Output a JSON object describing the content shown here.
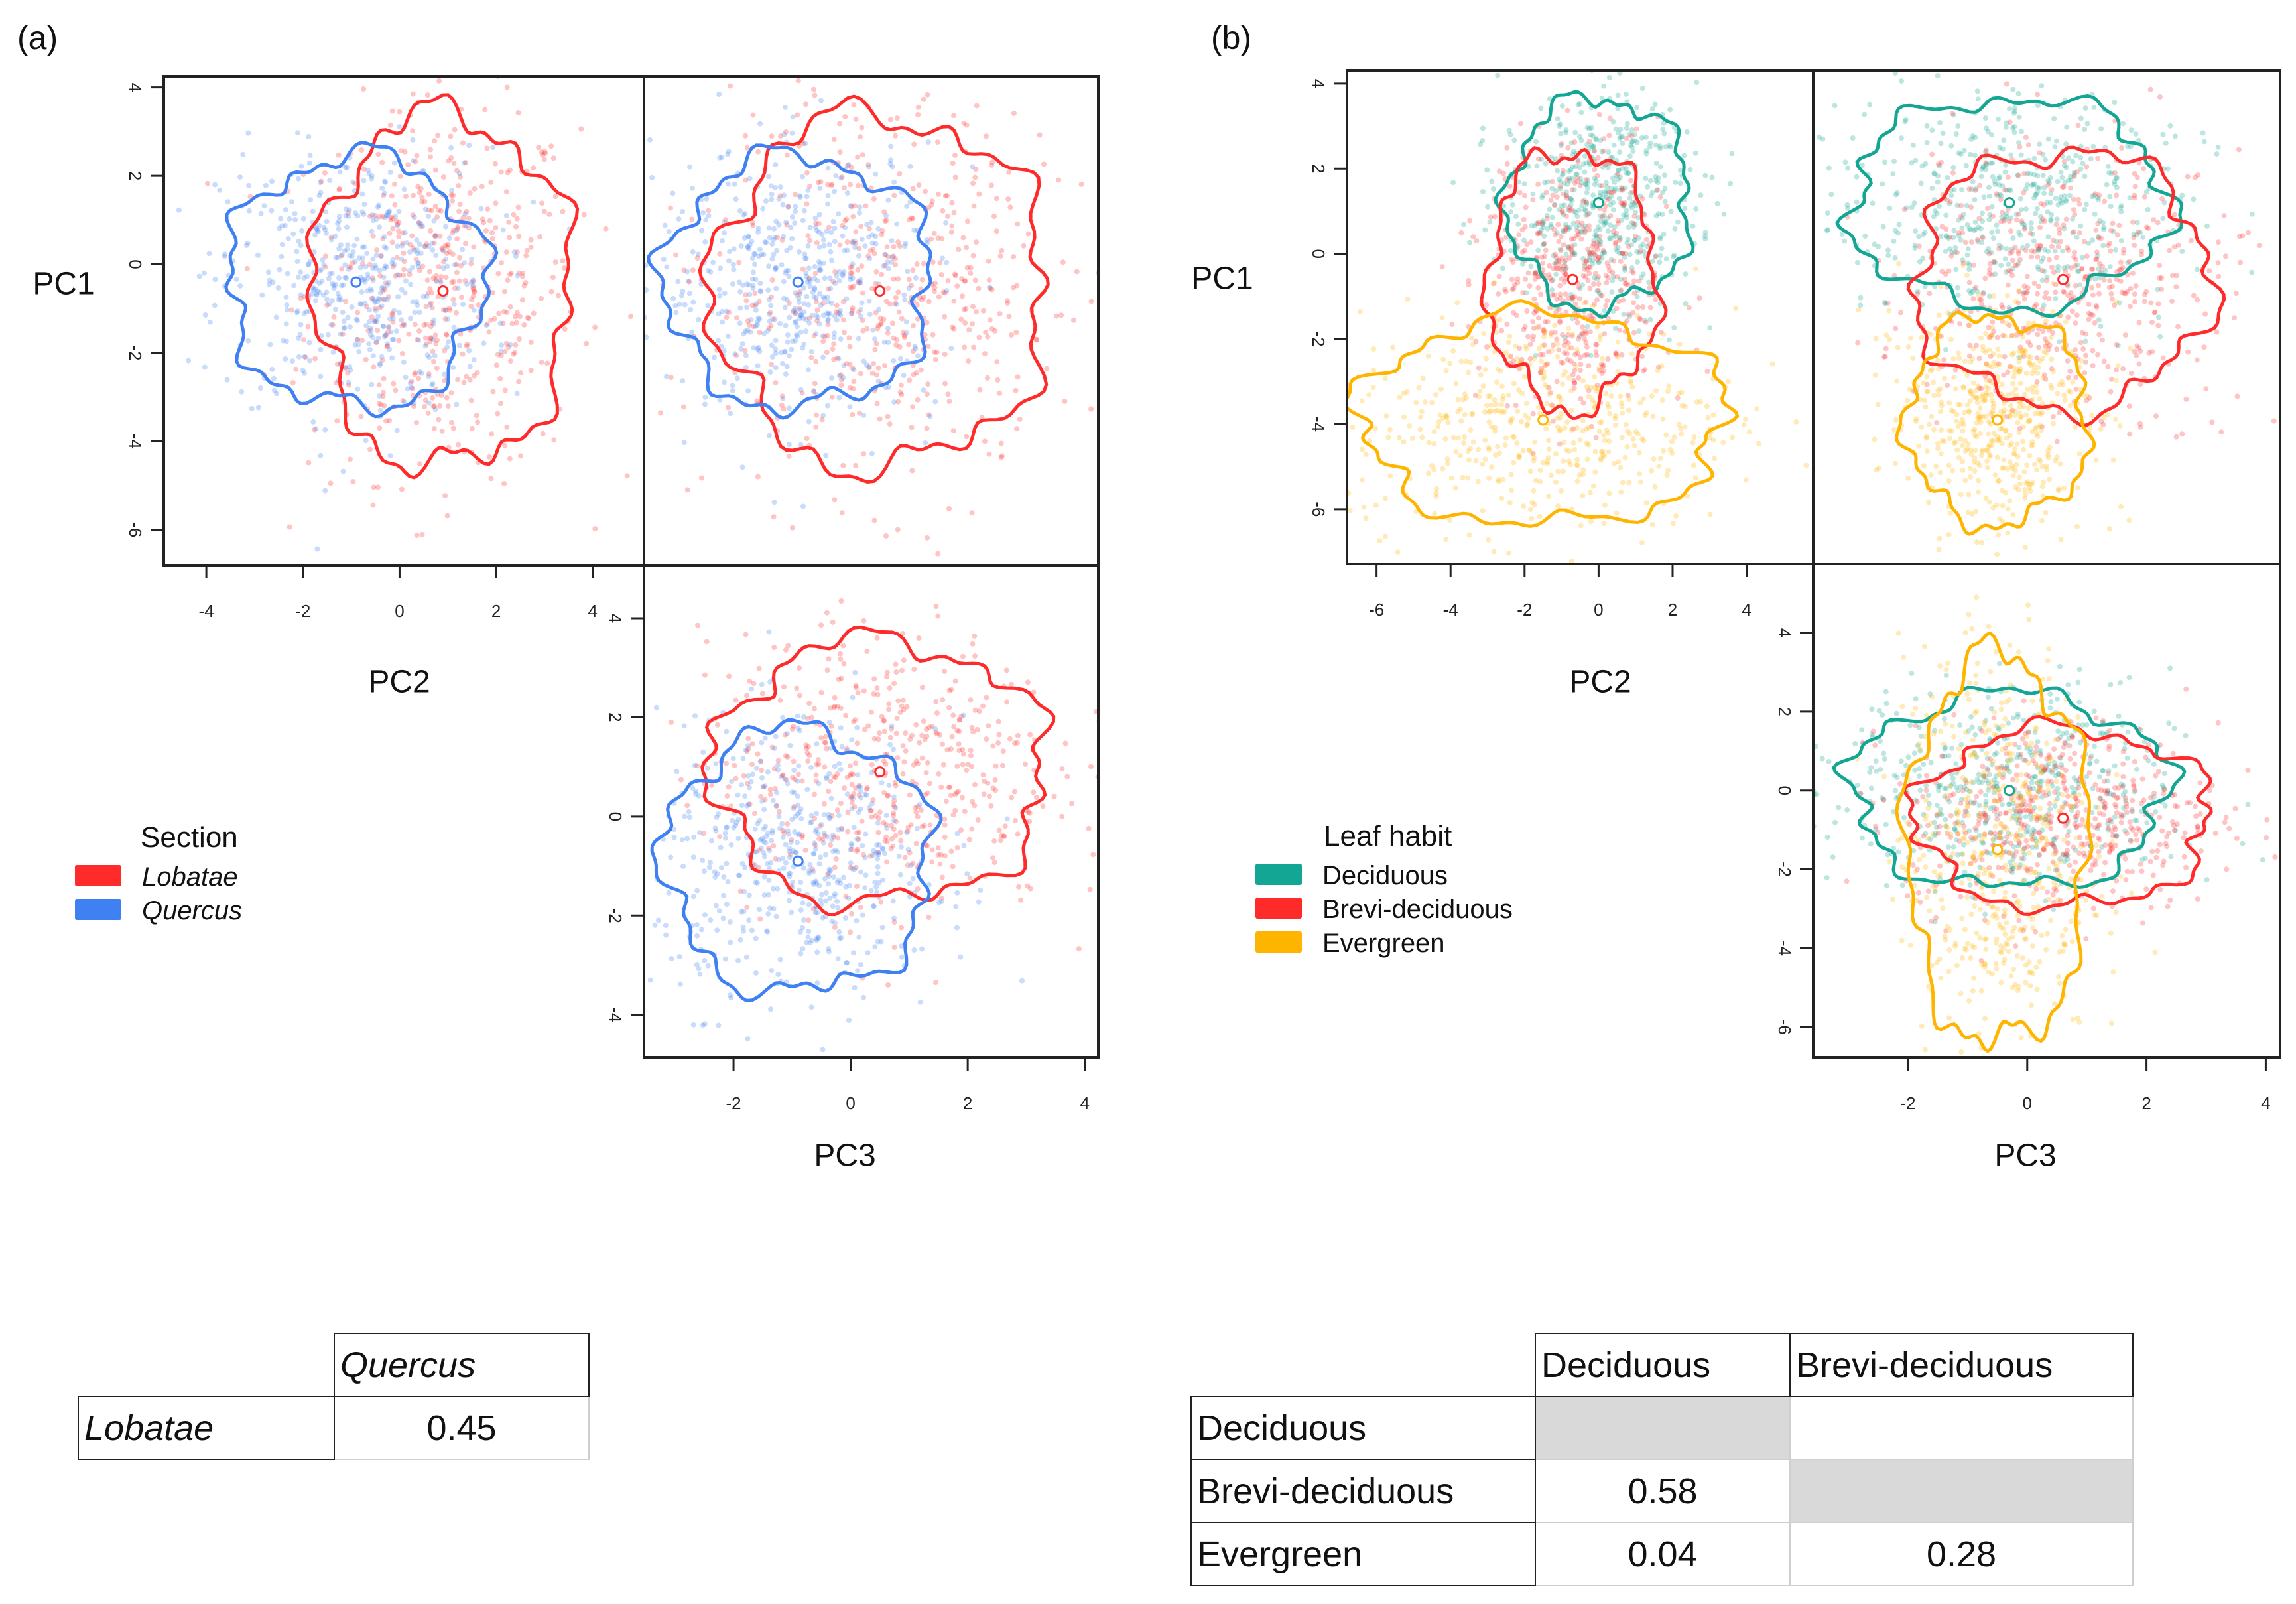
{
  "panel_labels": {
    "a": "(a)",
    "b": "(b)"
  },
  "chart_data": [
    {
      "type": "scatter",
      "id": "a",
      "title": "",
      "axis_labels": {
        "PC1": "PC1",
        "PC2": "PC2",
        "PC3": "PC3"
      },
      "legend": {
        "title": "Section",
        "placement": "left",
        "items": [
          {
            "label": "Lobatae",
            "color": "#ff2b2b"
          },
          {
            "label": "Quercus",
            "color": "#3f80f2"
          }
        ]
      },
      "groups": [
        {
          "name": "Lobatae",
          "color": "#ff2b2b",
          "mean": {
            "PC1": -0.6,
            "PC2": 0.9,
            "PC3": 0.5
          },
          "sd": {
            "PC1": 2.1,
            "PC2": 1.4,
            "PC3": 1.5
          }
        },
        {
          "name": "Quercus",
          "color": "#3f80f2",
          "mean": {
            "PC1": -0.4,
            "PC2": -0.9,
            "PC3": -0.9
          },
          "sd": {
            "PC1": 1.5,
            "PC2": 1.4,
            "PC3": 1.2
          }
        }
      ],
      "panels": [
        {
          "x": "PC2",
          "y": "PC1",
          "xlim": [
            -4.88,
            5.06
          ],
          "ylim": [
            -6.8,
            4.25
          ],
          "xticks": [
            -4,
            -2,
            0,
            2,
            4
          ],
          "yticks": [
            -6,
            -4,
            -2,
            0,
            2,
            4
          ]
        },
        {
          "x": "PC3",
          "y": "PC1",
          "xlim": [
            -3.53,
            4.23
          ],
          "ylim": [
            -6.8,
            4.25
          ],
          "xticks": [],
          "yticks": []
        },
        {
          "x": "PC3",
          "y": "PC2",
          "xlim": [
            -3.53,
            4.23
          ],
          "ylim": [
            -4.86,
            5.07
          ],
          "xticks": [
            -2,
            0,
            2,
            4
          ],
          "yticks": [
            -4,
            -2,
            0,
            2,
            4
          ]
        }
      ]
    },
    {
      "type": "scatter",
      "id": "b",
      "title": "",
      "axis_labels": {
        "PC1": "PC1",
        "PC2": "PC2",
        "PC3": "PC3"
      },
      "legend": {
        "title": "Leaf habit",
        "placement": "left",
        "items": [
          {
            "label": "Deciduous",
            "color": "#14a695"
          },
          {
            "label": "Brevi-deciduous",
            "color": "#ff2b2b"
          },
          {
            "label": "Evergreen",
            "color": "#ffb400"
          }
        ]
      },
      "groups": [
        {
          "name": "Deciduous",
          "color": "#14a695",
          "mean": {
            "PC1": 1.2,
            "PC2": 0.0,
            "PC3": -0.3
          },
          "sd": {
            "PC1": 1.3,
            "PC2": 1.3,
            "PC3": 1.4
          }
        },
        {
          "name": "Brevi-deciduous",
          "color": "#ff2b2b",
          "mean": {
            "PC1": -0.6,
            "PC2": -0.7,
            "PC3": 0.6
          },
          "sd": {
            "PC1": 1.6,
            "PC2": 1.2,
            "PC3": 1.3
          }
        },
        {
          "name": "Evergreen",
          "color": "#ffb400",
          "mean": {
            "PC1": -3.9,
            "PC2": -1.5,
            "PC3": -0.5
          },
          "sd": {
            "PC1": 1.3,
            "PC2": 2.6,
            "PC3": 0.8
          }
        }
      ],
      "panels": [
        {
          "x": "PC2",
          "y": "PC1",
          "xlim": [
            -6.8,
            5.8
          ],
          "ylim": [
            -7.28,
            4.31
          ],
          "xticks": [
            -6,
            -4,
            -2,
            0,
            2,
            4
          ],
          "yticks": [
            -6,
            -4,
            -2,
            0,
            2,
            4
          ]
        },
        {
          "x": "PC3",
          "y": "PC1",
          "xlim": [
            -3.59,
            4.24
          ],
          "ylim": [
            -7.28,
            4.31
          ],
          "xticks": [],
          "yticks": []
        },
        {
          "x": "PC3",
          "y": "PC2",
          "xlim": [
            -3.59,
            4.24
          ],
          "ylim": [
            -6.77,
            5.75
          ],
          "xticks": [
            -2,
            0,
            2,
            4
          ],
          "yticks": [
            -6,
            -4,
            -2,
            0,
            2,
            4
          ]
        }
      ]
    }
  ],
  "tables": {
    "a": {
      "columns": [
        "Quercus"
      ],
      "rows": [
        {
          "label": "Lobatae",
          "values": [
            "0.45"
          ]
        }
      ]
    },
    "b": {
      "columns": [
        "Deciduous",
        "Brevi-deciduous"
      ],
      "rows": [
        {
          "label": "Deciduous",
          "values": [
            "",
            ""
          ]
        },
        {
          "label": "Brevi-deciduous",
          "values": [
            "0.58",
            ""
          ]
        },
        {
          "label": "Evergreen",
          "values": [
            "0.04",
            "0.28"
          ]
        }
      ]
    }
  }
}
